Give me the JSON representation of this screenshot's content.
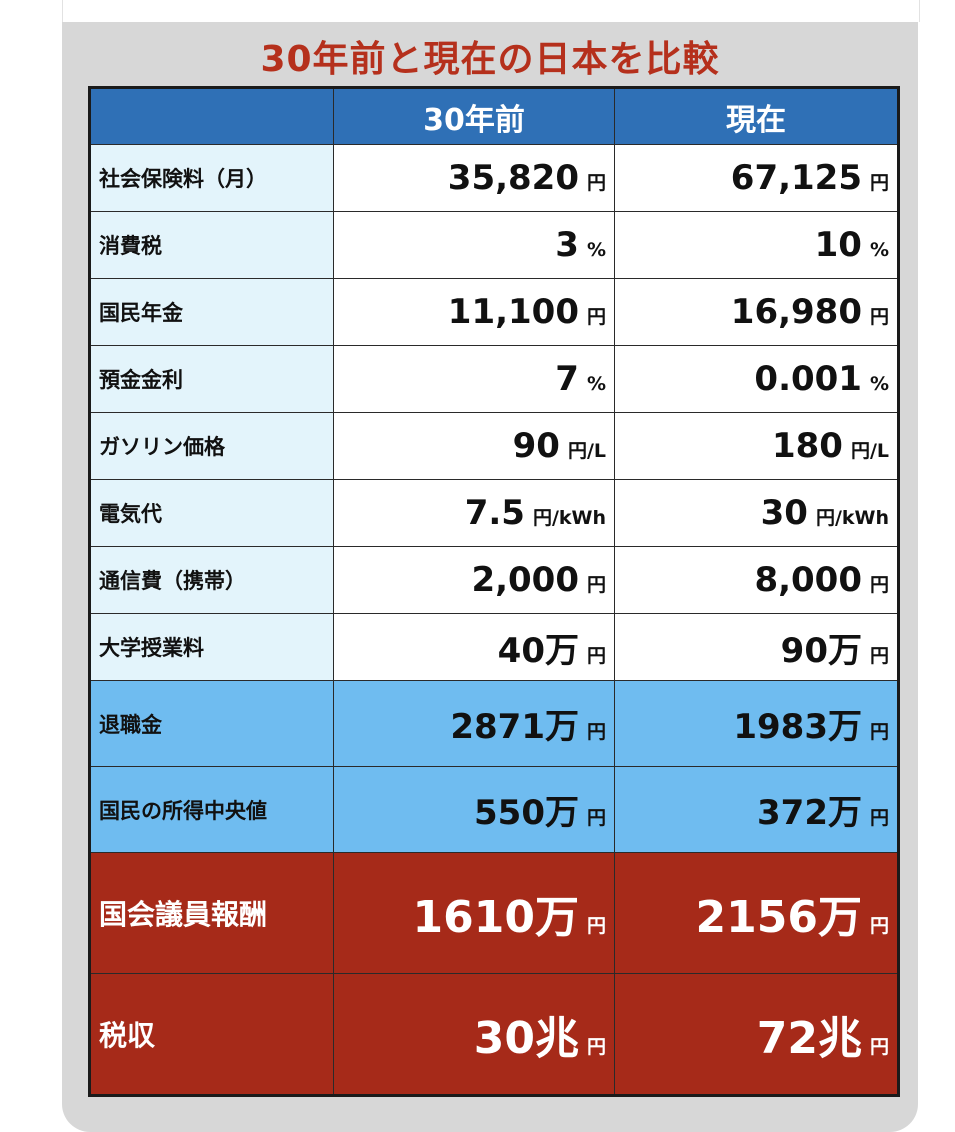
{
  "title": "30年前と現在の日本を比較",
  "columns": [
    "",
    "30年前",
    "現在"
  ],
  "colors": {
    "header": "#2f70b6",
    "label_bg": "#e3f4fb",
    "highlight_blue": "#6fbcf0",
    "highlight_red": "#a62a19",
    "title": "#b5301c",
    "panel": "#d7d7d7"
  },
  "rows": [
    {
      "style": "plain",
      "label": "社会保険料（月）",
      "past": {
        "value": "35,820",
        "unit": "円"
      },
      "now": {
        "value": "67,125",
        "unit": "円"
      }
    },
    {
      "style": "plain",
      "label": "消費税",
      "past": {
        "value": "3",
        "unit": "%"
      },
      "now": {
        "value": "10",
        "unit": "%"
      }
    },
    {
      "style": "plain",
      "label": "国民年金",
      "past": {
        "value": "11,100",
        "unit": "円"
      },
      "now": {
        "value": "16,980",
        "unit": "円"
      }
    },
    {
      "style": "plain",
      "label": "預金金利",
      "past": {
        "value": "7",
        "unit": "%"
      },
      "now": {
        "value": "0.001",
        "unit": "%"
      }
    },
    {
      "style": "plain",
      "label": "ガソリン価格",
      "past": {
        "value": "90",
        "unit": "円/L"
      },
      "now": {
        "value": "180",
        "unit": "円/L"
      }
    },
    {
      "style": "plain",
      "label": "電気代",
      "past": {
        "value": "7.5",
        "unit": "円/kWh"
      },
      "now": {
        "value": "30",
        "unit": "円/kWh"
      }
    },
    {
      "style": "plain",
      "label": "通信費（携帯）",
      "past": {
        "value": "2,000",
        "unit": "円"
      },
      "now": {
        "value": "8,000",
        "unit": "円"
      }
    },
    {
      "style": "plain",
      "label": "大学授業料",
      "past": {
        "value": "40万",
        "unit": "円"
      },
      "now": {
        "value": "90万",
        "unit": "円"
      }
    },
    {
      "style": "blue",
      "label": "退職金",
      "past": {
        "value": "2871万",
        "unit": "円"
      },
      "now": {
        "value": "1983万",
        "unit": "円"
      }
    },
    {
      "style": "blue",
      "label": "国民の所得中央値",
      "past": {
        "value": "550万",
        "unit": "円"
      },
      "now": {
        "value": "372万",
        "unit": "円"
      }
    },
    {
      "style": "red",
      "label": "国会議員報酬",
      "past": {
        "value": "1610万",
        "unit": "円"
      },
      "now": {
        "value": "2156万",
        "unit": "円"
      }
    },
    {
      "style": "red",
      "label": "税収",
      "past": {
        "value": "30兆",
        "unit": "円"
      },
      "now": {
        "value": "72兆",
        "unit": "円"
      }
    }
  ]
}
